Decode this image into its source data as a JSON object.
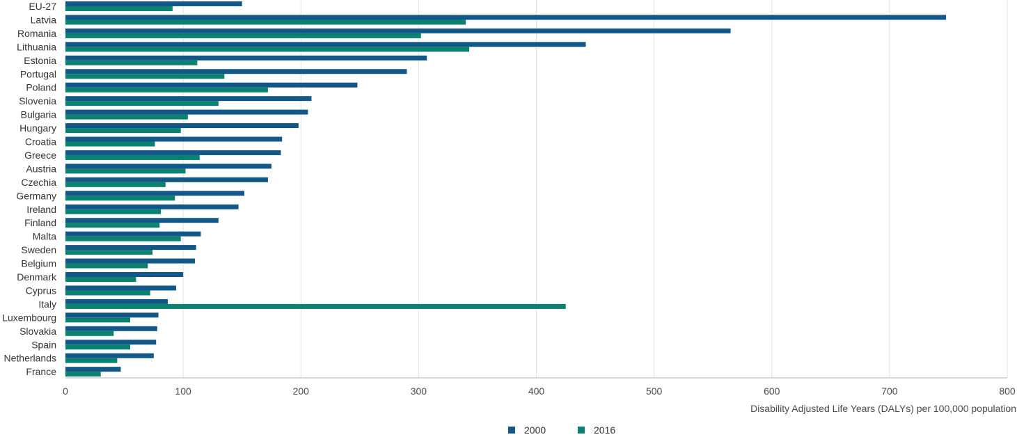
{
  "chart_data": {
    "type": "bar",
    "orientation": "horizontal",
    "categories": [
      "EU-27",
      "Latvia",
      "Romania",
      "Lithuania",
      "Estonia",
      "Portugal",
      "Poland",
      "Slovenia",
      "Bulgaria",
      "Hungary",
      "Croatia",
      "Greece",
      "Austria",
      "Czechia",
      "Germany",
      "Ireland",
      "Finland",
      "Malta",
      "Sweden",
      "Belgium",
      "Denmark",
      "Cyprus",
      "Italy",
      "Luxembourg",
      "Slovakia",
      "Spain",
      "Netherlands",
      "France"
    ],
    "series": [
      {
        "name": "2000",
        "color": "#135788",
        "values": [
          150,
          748,
          565,
          442,
          307,
          290,
          248,
          209,
          206,
          198,
          184,
          183,
          175,
          172,
          152,
          147,
          130,
          115,
          111,
          110,
          100,
          94,
          87,
          79,
          78,
          77,
          75,
          47
        ]
      },
      {
        "name": "2016",
        "color": "#0b8170",
        "values": [
          91,
          340,
          302,
          343,
          112,
          135,
          172,
          130,
          104,
          98,
          76,
          114,
          102,
          85,
          93,
          81,
          80,
          98,
          74,
          70,
          60,
          72,
          425,
          55,
          41,
          55,
          44,
          30
        ]
      }
    ],
    "xlabel": "Disability Adjusted Life Years (DALYs) per 100,000 population",
    "xlim": [
      0,
      800
    ],
    "xticks": [
      0,
      100,
      200,
      300,
      400,
      500,
      600,
      700,
      800
    ],
    "grid": true,
    "legend_position": "bottom-center"
  }
}
